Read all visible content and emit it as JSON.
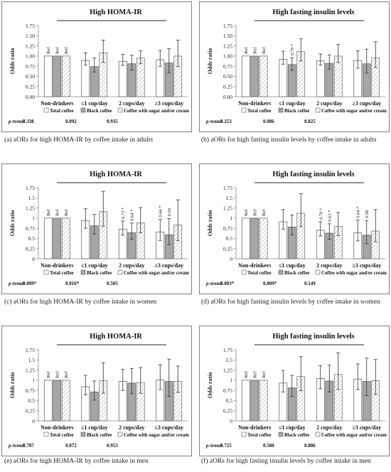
{
  "legend_labels": [
    "Total coffee",
    "Black coffee",
    "Coffee with sugar and/or cream"
  ],
  "ylabel": "Odds ratio",
  "yticks": [
    "0.00",
    "0.25",
    "0.50",
    "0.75",
    "1.00",
    "1.25",
    "1.50",
    "1.75"
  ],
  "yticks_alt": [
    "0",
    "0.25",
    "0.5",
    "0.75",
    "1",
    "1.25",
    "1.5",
    "1.75"
  ],
  "categories": [
    "Non-drinkers",
    "≤1 cup/day",
    "2 cups/day",
    "≥3 cups/day"
  ],
  "ptrend_label": "p-trend",
  "ref_label": "Ref",
  "colors": {
    "total": "#ffffff",
    "black": "#a6a6a6",
    "sugar": "#ffffff",
    "hatch": "#bfbfbf",
    "frame": "#7f7f7f"
  },
  "chart_data": [
    {
      "type": "bar",
      "panel": "a",
      "title": "High HOMA-IR",
      "ylim": [
        0,
        1.75
      ],
      "tick_style": "fixed",
      "caption": "(a) aORs for high HOMA-IR by coffee intake in adults",
      "ptrend": [
        "0.338",
        "0.092",
        "0.935"
      ],
      "series": [
        {
          "name": "Total coffee",
          "values": [
            1,
            0.89,
            0.87,
            0.91
          ],
          "err_low": [
            null,
            0.78,
            0.77,
            0.75
          ],
          "err_high": [
            null,
            1.08,
            1.04,
            1.14
          ],
          "labels": [
            "Ref",
            "",
            "",
            ""
          ]
        },
        {
          "name": "Black coffee",
          "values": [
            1,
            0.74,
            0.81,
            0.83
          ],
          "err_low": [
            null,
            0.61,
            0.66,
            0.59
          ],
          "err_high": [
            null,
            0.95,
            1.02,
            1.18
          ],
          "labels": [
            "Ref",
            "",
            "",
            ""
          ]
        },
        {
          "name": "Coffee with sugar and/or cream",
          "values": [
            1,
            1.08,
            0.95,
            1.0
          ],
          "err_low": [
            null,
            0.84,
            0.81,
            0.74
          ],
          "err_high": [
            null,
            1.39,
            1.13,
            1.39
          ],
          "labels": [
            "Ref",
            "",
            "",
            ""
          ]
        }
      ]
    },
    {
      "type": "bar",
      "panel": "b",
      "title": "High fasting insulin levels",
      "ylim": [
        0,
        1.75
      ],
      "tick_style": "fixed",
      "caption": "(b) aORs for high fasting insulin levels by coffee intake in adults",
      "ptrend": [
        "0.253",
        "0.086",
        "0.825"
      ],
      "series": [
        {
          "name": "Total coffee",
          "values": [
            1,
            0.92,
            0.88,
            0.89
          ],
          "err_low": [
            null,
            0.8,
            0.78,
            0.7
          ],
          "err_high": [
            null,
            1.12,
            1.05,
            1.13
          ],
          "labels": [
            "Ref",
            "",
            "",
            ""
          ]
        },
        {
          "name": "Black coffee",
          "values": [
            1,
            0.79,
            0.82,
            0.81
          ],
          "err_low": [
            null,
            0.65,
            0.68,
            0.58
          ],
          "err_high": [
            null,
            0.96,
            1.03,
            1.17
          ],
          "labels": [
            "Ref",
            "0.79 *",
            "",
            ""
          ]
        },
        {
          "name": "Coffee with sugar and/or cream",
          "values": [
            1,
            1.11,
            1.0,
            0.96
          ],
          "err_low": [
            null,
            0.88,
            0.84,
            0.72
          ],
          "err_high": [
            null,
            1.43,
            1.29,
            1.35
          ],
          "labels": [
            "Ref",
            "",
            "",
            ""
          ]
        }
      ]
    },
    {
      "type": "bar",
      "panel": "c",
      "title": "High HOMA-IR",
      "ylim": [
        0,
        1.75
      ],
      "tick_style": "alt",
      "caption": "(c) aORs for high HOMA-IR by coffee intake in women",
      "ptrend": [
        "0.009*",
        "0.016*",
        "0.505"
      ],
      "series": [
        {
          "name": "Total coffee",
          "values": [
            1,
            0.94,
            0.73,
            0.66
          ],
          "err_low": [
            null,
            0.75,
            0.58,
            0.45
          ],
          "err_high": [
            null,
            1.23,
            0.93,
            0.97
          ],
          "labels": [
            "Ref",
            "",
            "0.73 *",
            "0.66 *"
          ]
        },
        {
          "name": "Black coffee",
          "values": [
            1,
            0.81,
            0.64,
            0.59
          ],
          "err_low": [
            null,
            0.61,
            0.48,
            0.35
          ],
          "err_high": [
            null,
            1.09,
            0.88,
            0.99
          ],
          "labels": [
            "Ref",
            "",
            "0.64 *",
            "0.59"
          ]
        },
        {
          "name": "Coffee with sugar and/or cream",
          "values": [
            1,
            1.16,
            0.88,
            0.83
          ],
          "err_low": [
            null,
            0.8,
            0.64,
            0.45
          ],
          "err_high": [
            null,
            1.66,
            1.26,
            1.45
          ],
          "labels": [
            "Ref",
            "",
            "",
            ""
          ]
        }
      ]
    },
    {
      "type": "bar",
      "panel": "d",
      "title": "High fasting insulin levels",
      "ylim": [
        0,
        1.75
      ],
      "tick_style": "alt",
      "caption": "(d) aORs for high fasting insulin levels by coffee intake in women",
      "ptrend": [
        "0.003*",
        "0.009*",
        "0.149"
      ],
      "series": [
        {
          "name": "Total coffee",
          "values": [
            1,
            0.91,
            0.7,
            0.64
          ],
          "err_low": [
            null,
            0.73,
            0.56,
            0.44
          ],
          "err_high": [
            null,
            1.21,
            0.91,
            0.95
          ],
          "labels": [
            "Ref",
            "",
            "0.70 *",
            "0.64 *"
          ]
        },
        {
          "name": "Black coffee",
          "values": [
            1,
            0.78,
            0.63,
            0.58
          ],
          "err_low": [
            null,
            0.59,
            0.48,
            0.37
          ],
          "err_high": [
            null,
            1.08,
            0.86,
            0.94
          ],
          "labels": [
            "Ref",
            "",
            "0.63 *",
            "0.58"
          ]
        },
        {
          "name": "Coffee with sugar and/or cream",
          "values": [
            1,
            1.12,
            0.8,
            0.68
          ],
          "err_low": [
            null,
            0.79,
            0.57,
            0.42
          ],
          "err_high": [
            null,
            1.6,
            1.14,
            1.21
          ],
          "labels": [
            "Ref",
            "",
            "",
            ""
          ]
        }
      ]
    },
    {
      "type": "bar",
      "panel": "e",
      "title": "High HOMA-IR",
      "ylim": [
        0,
        1.75
      ],
      "tick_style": "alt",
      "caption": "(e) aORs for high HOMA-IR by coffee intake in men",
      "ptrend": [
        "0.707",
        "0.872",
        "0.953"
      ],
      "series": [
        {
          "name": "Total coffee",
          "values": [
            1,
            0.84,
            0.97,
            1.01
          ],
          "err_low": [
            null,
            0.64,
            0.75,
            0.77
          ],
          "err_high": [
            null,
            1.12,
            1.27,
            1.38
          ],
          "labels": [
            "Ref",
            "",
            "",
            ""
          ]
        },
        {
          "name": "Black coffee",
          "values": [
            1,
            0.71,
            0.93,
            0.97
          ],
          "err_low": [
            null,
            0.51,
            0.67,
            0.6
          ],
          "err_high": [
            null,
            0.98,
            1.29,
            1.52
          ],
          "labels": [
            "Ref",
            "",
            "",
            ""
          ]
        },
        {
          "name": "Coffee with sugar and/or cream",
          "values": [
            1,
            0.99,
            0.94,
            0.97
          ],
          "err_low": [
            null,
            0.68,
            0.68,
            0.7
          ],
          "err_high": [
            null,
            1.43,
            1.31,
            1.35
          ],
          "labels": [
            "Ref",
            "",
            "",
            ""
          ]
        }
      ]
    },
    {
      "type": "bar",
      "panel": "f",
      "title": "High fasting insulin levels",
      "ylim": [
        0,
        1.75
      ],
      "tick_style": "alt",
      "caption": "(f) aORs for high fasting insulin levels by coffee intake in men",
      "ptrend": [
        "0.725",
        "0.580",
        "0.886"
      ],
      "series": [
        {
          "name": "Total coffee",
          "values": [
            1,
            0.93,
            1.04,
            1.03
          ],
          "err_low": [
            null,
            0.71,
            0.79,
            0.77
          ],
          "err_high": [
            null,
            1.24,
            1.36,
            1.4
          ],
          "labels": [
            "Ref",
            "",
            "",
            ""
          ]
        },
        {
          "name": "Black coffee",
          "values": [
            1,
            0.81,
            0.98,
            0.97
          ],
          "err_low": [
            null,
            0.6,
            0.71,
            0.62
          ],
          "err_high": [
            null,
            1.12,
            1.37,
            1.54
          ],
          "labels": [
            "Ref",
            "",
            "",
            ""
          ]
        },
        {
          "name": "Coffee with sugar and/or cream",
          "values": [
            1,
            1.09,
            1.14,
            0.99
          ],
          "err_low": [
            null,
            0.74,
            0.77,
            0.65
          ],
          "err_high": [
            null,
            1.58,
            1.67,
            1.51
          ],
          "labels": [
            "Ref",
            "",
            "",
            ""
          ]
        }
      ]
    }
  ]
}
